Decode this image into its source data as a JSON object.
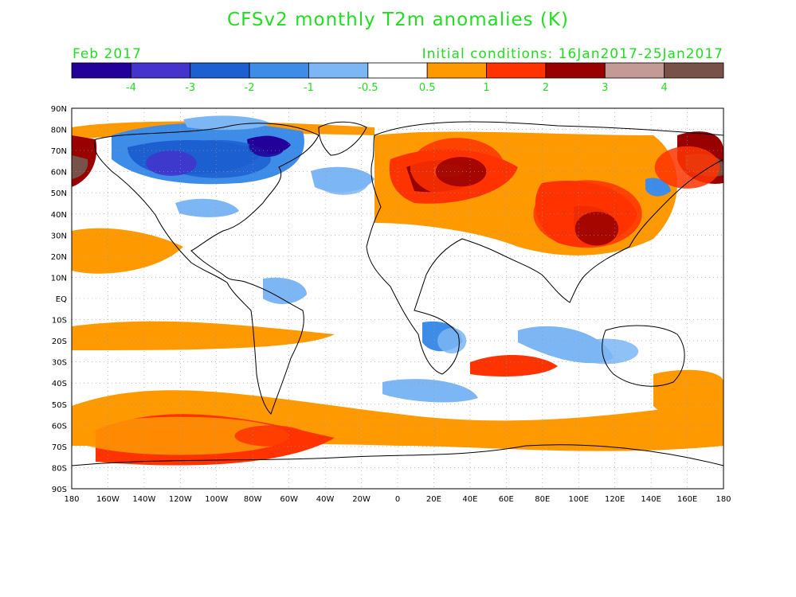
{
  "title": "CFSv2 monthly T2m anomalies (K)",
  "valid_month": "Feb 2017",
  "initial_conditions": "Initial conditions: 16Jan2017-25Jan2017",
  "colorbar": {
    "colors": [
      "#220099",
      "#4433cc",
      "#1c5fd0",
      "#3d8de8",
      "#7db6f5",
      "#ffffff",
      "#ff9900",
      "#ff3300",
      "#990000",
      "#c49a96",
      "#785248"
    ],
    "tick_labels": [
      "-4",
      "-3",
      "-2",
      "-1",
      "-0.5",
      "0.5",
      "1",
      "2",
      "3",
      "4"
    ]
  },
  "map": {
    "lat_labels": [
      "90N",
      "80N",
      "70N",
      "60N",
      "50N",
      "40N",
      "30N",
      "20N",
      "10N",
      "EQ",
      "10S",
      "20S",
      "30S",
      "40S",
      "50S",
      "60S",
      "70S",
      "80S",
      "90S"
    ],
    "lon_labels": [
      "180",
      "160W",
      "140W",
      "120W",
      "100W",
      "80W",
      "60W",
      "40W",
      "20W",
      "0",
      "20E",
      "40E",
      "60E",
      "80E",
      "100E",
      "120E",
      "140E",
      "160E",
      "180"
    ],
    "grid": "dotted every 10 degrees",
    "anomaly_patches": [
      {
        "lon": -100,
        "lat": 66,
        "rx": 30,
        "ry": 9,
        "level": -2
      },
      {
        "lon": -125,
        "lat": 64,
        "rx": 14,
        "ry": 6,
        "level": -3
      },
      {
        "lon": -72,
        "lat": 72,
        "rx": 10,
        "ry": 5,
        "level": -4
      },
      {
        "lon": -30,
        "lat": 55,
        "rx": 14,
        "ry": 6,
        "level": -1
      },
      {
        "lon": 33,
        "lat": 62,
        "rx": 26,
        "ry": 14,
        "level": 2
      },
      {
        "lon": 35,
        "lat": 60,
        "rx": 14,
        "ry": 7,
        "level": 3
      },
      {
        "lon": 105,
        "lat": 40,
        "rx": 30,
        "ry": 16,
        "level": 2
      },
      {
        "lon": 110,
        "lat": 33,
        "rx": 12,
        "ry": 8,
        "level": 3
      },
      {
        "lon": 160,
        "lat": 62,
        "rx": 18,
        "ry": 10,
        "level": 2
      },
      {
        "lon": -120,
        "lat": -65,
        "rx": 60,
        "ry": 9,
        "level": 1
      },
      {
        "lon": -70,
        "lat": -65,
        "rx": 20,
        "ry": 5,
        "level": 2
      },
      {
        "lon": 30,
        "lat": -20,
        "rx": 8,
        "ry": 6,
        "level": -1
      },
      {
        "lon": 115,
        "lat": -25,
        "rx": 18,
        "ry": 6,
        "level": -1
      }
    ]
  }
}
